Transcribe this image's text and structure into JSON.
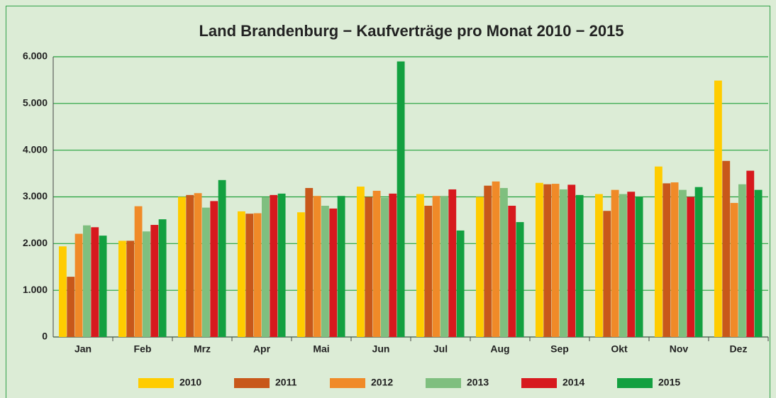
{
  "chart_data": {
    "type": "bar",
    "title": "Land Brandenburg − Kaufverträge pro Monat 2010 − 2015",
    "categories": [
      "Jan",
      "Feb",
      "Mrz",
      "Apr",
      "Mai",
      "Jun",
      "Jul",
      "Aug",
      "Sep",
      "Okt",
      "Nov",
      "Dez"
    ],
    "series": [
      {
        "name": "2010",
        "color": "#ffcc00",
        "values": [
          1940,
          2060,
          3000,
          2690,
          2670,
          3220,
          3060,
          3000,
          3300,
          3060,
          3650,
          5490
        ]
      },
      {
        "name": "2011",
        "color": "#c8581a",
        "values": [
          1290,
          2060,
          3040,
          2640,
          3190,
          3000,
          2810,
          3240,
          3270,
          2700,
          3290,
          3770
        ]
      },
      {
        "name": "2012",
        "color": "#f08a28",
        "values": [
          2210,
          2800,
          3080,
          2650,
          3020,
          3130,
          3020,
          3330,
          3280,
          3150,
          3310,
          2870
        ]
      },
      {
        "name": "2013",
        "color": "#7fbf7f",
        "values": [
          2390,
          2260,
          2770,
          2990,
          2810,
          2980,
          3020,
          3190,
          3160,
          3060,
          3150,
          3270
        ]
      },
      {
        "name": "2014",
        "color": "#d7191e",
        "values": [
          2350,
          2400,
          2910,
          3040,
          2750,
          3070,
          3160,
          2810,
          3260,
          3110,
          3000,
          3560
        ]
      },
      {
        "name": "2015",
        "color": "#13a040",
        "values": [
          2170,
          2520,
          3360,
          3070,
          3020,
          5900,
          2280,
          2460,
          3040,
          3000,
          3210,
          3150
        ]
      }
    ],
    "ylim": [
      0,
      6000
    ],
    "yticks": [
      0,
      {
        "value": 1000,
        "label": "1.000"
      },
      {
        "value": 2000,
        "label": "2.000"
      },
      {
        "value": 3000,
        "label": "3.000"
      },
      {
        "value": 4000,
        "label": "4.000"
      },
      {
        "value": 5000,
        "label": "5.000"
      },
      {
        "value": 6000,
        "label": "6.000"
      }
    ],
    "grid": true,
    "legend": "bottom"
  }
}
